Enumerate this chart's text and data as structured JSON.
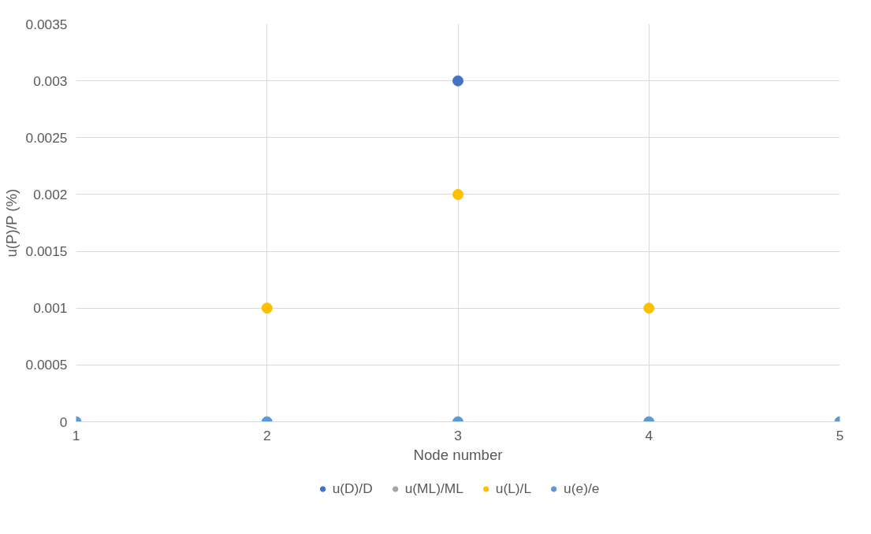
{
  "chart_data": {
    "type": "scatter",
    "xlabel": "Node number",
    "ylabel": "u(P)/P (%)",
    "x": [
      1,
      2,
      3,
      4,
      5
    ],
    "series": [
      {
        "name": "u(D)/D",
        "color": "#4472c4",
        "values": [
          null,
          null,
          0.003,
          null,
          null
        ]
      },
      {
        "name": "u(ML)/ML",
        "color": "#a5a5a5",
        "values": [
          null,
          null,
          null,
          null,
          null
        ]
      },
      {
        "name": "u(L)/L",
        "color": "#ffc000",
        "values": [
          null,
          0.001,
          0.002,
          0.001,
          null
        ]
      },
      {
        "name": "u(e)/e",
        "color": "#5b9bd5",
        "values": [
          0,
          0,
          0,
          0,
          0
        ]
      }
    ],
    "xlim": [
      1,
      5
    ],
    "xticks": [
      1,
      2,
      3,
      4,
      5
    ],
    "ylim": [
      0,
      0.0035
    ],
    "yticks": [
      0,
      0.0005,
      0.001,
      0.0015,
      0.002,
      0.0025,
      0.003,
      0.0035
    ],
    "grid": true,
    "legend": "bottom",
    "marker": "circle"
  }
}
